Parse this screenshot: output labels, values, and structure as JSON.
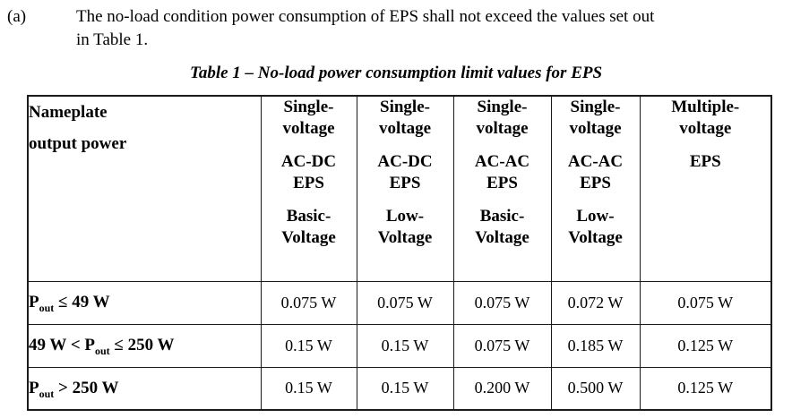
{
  "page": {
    "item_label": "(a)",
    "paragraph": {
      "lines": [
        "The no-load condition power consumption of EPS shall not exceed the values set out",
        "in Table 1."
      ]
    },
    "caption": "Table 1 – No-load power consumption limit values for EPS"
  },
  "table": {
    "corner_header": [
      "Nameplate",
      "output power"
    ],
    "columns": [
      {
        "name": "single-voltage-ac-dc-eps-basic-voltage",
        "blocks": [
          [
            "Single-",
            "voltage"
          ],
          [
            "AC-DC",
            "EPS"
          ],
          [
            "Basic-",
            "Voltage"
          ]
        ]
      },
      {
        "name": "single-voltage-ac-dc-eps-low-voltage",
        "blocks": [
          [
            "Single-",
            "voltage"
          ],
          [
            "AC-DC",
            "EPS"
          ],
          [
            "Low-",
            "Voltage"
          ]
        ]
      },
      {
        "name": "single-voltage-ac-ac-eps-basic-voltage",
        "blocks": [
          [
            "Single-",
            "voltage"
          ],
          [
            "AC-AC",
            "EPS"
          ],
          [
            "Basic-",
            "Voltage"
          ]
        ]
      },
      {
        "name": "single-voltage-ac-ac-eps-low-voltage",
        "blocks": [
          [
            "Single-",
            "voltage"
          ],
          [
            "AC-AC",
            "EPS"
          ],
          [
            "Low-",
            "Voltage"
          ]
        ]
      },
      {
        "name": "multiple-voltage-eps",
        "blocks": [
          [
            "Multiple-",
            "voltage"
          ],
          [
            "EPS"
          ]
        ]
      }
    ],
    "rows": [
      {
        "label": [
          {
            "text": "P"
          },
          {
            "sub": "out"
          },
          {
            "text": " ≤ 49 W"
          }
        ],
        "values": [
          "0.075 W",
          "0.075 W",
          "0.075 W",
          "0.072 W",
          "0.075 W"
        ]
      },
      {
        "label": [
          {
            "text": "49 W < P"
          },
          {
            "sub": "out"
          },
          {
            "text": " ≤ 250 W"
          }
        ],
        "values": [
          "0.15 W",
          "0.15 W",
          "0.075 W",
          "0.185 W",
          "0.125 W"
        ]
      },
      {
        "label": [
          {
            "text": "P"
          },
          {
            "sub": "out"
          },
          {
            "text": " > 250 W"
          }
        ],
        "values": [
          "0.15 W",
          "0.15 W",
          "0.200 W",
          "0.500 W",
          "0.125 W"
        ]
      }
    ]
  },
  "colors": {
    "text": "#000000",
    "border": "#1a1a1a",
    "background": "#ffffff"
  }
}
